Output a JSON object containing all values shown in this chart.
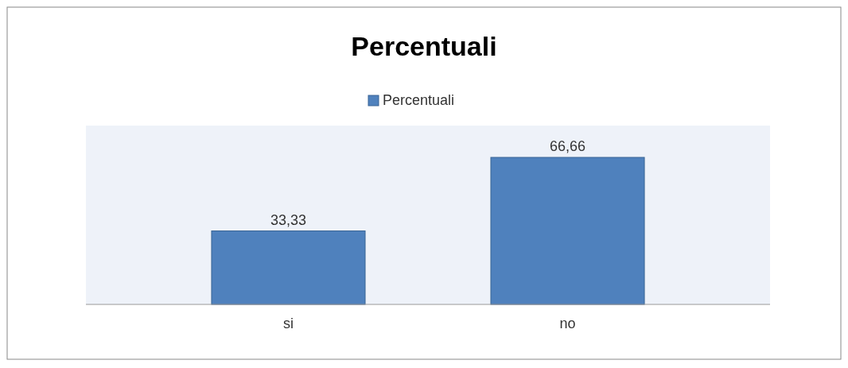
{
  "chart_data": {
    "type": "bar",
    "title": "Percentuali",
    "categories": [
      "si",
      "no"
    ],
    "series": [
      {
        "name": "Percentuali",
        "color": "#4f81bd",
        "values": [
          33.33,
          66.66
        ],
        "value_labels": [
          "33,33",
          "66,66"
        ]
      }
    ],
    "legend": "top"
  }
}
